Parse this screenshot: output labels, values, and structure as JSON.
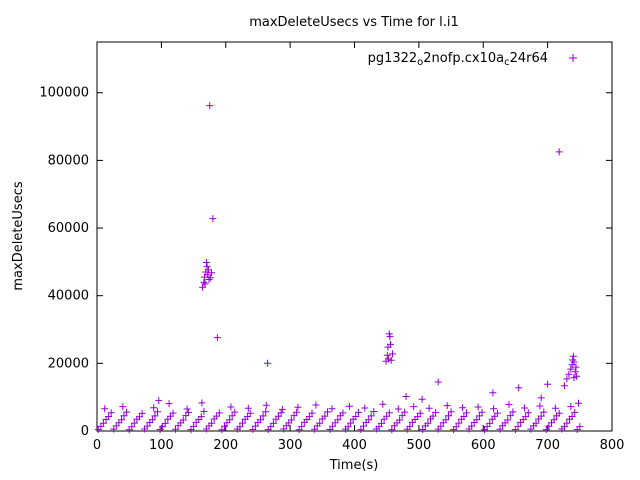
{
  "title": "maxDeleteUsecs vs Time for l.i1",
  "xlabel": "Time(s)",
  "ylabel": "maxDeleteUsecs",
  "legend": {
    "label_plain": "pg1322_o2nofp.cx10a_c24r64",
    "segments": [
      {
        "t": "pg1322",
        "sub": false
      },
      {
        "t": "o",
        "sub": true
      },
      {
        "t": "2nofp.cx10a",
        "sub": false
      },
      {
        "t": "c",
        "sub": true
      },
      {
        "t": "24r64",
        "sub": false
      }
    ],
    "marker": "plus"
  },
  "colors": {
    "points": "#9400d3",
    "axis": "#000000",
    "text": "#000000"
  },
  "chart_data": {
    "type": "scatter",
    "title": "maxDeleteUsecs vs Time for l.i1",
    "xlabel": "Time(s)",
    "ylabel": "maxDeleteUsecs",
    "xlim": [
      0,
      800
    ],
    "ylim": [
      0,
      115000
    ],
    "xticks": [
      0,
      100,
      200,
      300,
      400,
      500,
      600,
      700,
      800
    ],
    "yticks": [
      0,
      20000,
      40000,
      60000,
      80000,
      100000
    ],
    "grid": false,
    "legend_position": "top-right-inside",
    "series": [
      {
        "name": "pg1322_o2nofp.cx10a_c24r64",
        "marker": "plus",
        "color": "#9400d3",
        "points": [
          [
            2,
            400
          ],
          [
            6,
            1350
          ],
          [
            10,
            2300
          ],
          [
            14,
            3400
          ],
          [
            18,
            4300
          ],
          [
            22,
            5400
          ],
          [
            26,
            550
          ],
          [
            30,
            1500
          ],
          [
            34,
            2450
          ],
          [
            38,
            3300
          ],
          [
            42,
            4500
          ],
          [
            46,
            5600
          ],
          [
            50,
            350
          ],
          [
            54,
            1250
          ],
          [
            58,
            2350
          ],
          [
            62,
            3500
          ],
          [
            66,
            4200
          ],
          [
            70,
            5200
          ],
          [
            74,
            600
          ],
          [
            78,
            1450
          ],
          [
            82,
            2500
          ],
          [
            86,
            3350
          ],
          [
            90,
            4450
          ],
          [
            94,
            5700
          ],
          [
            98,
            450
          ],
          [
            102,
            1300
          ],
          [
            106,
            2250
          ],
          [
            110,
            3450
          ],
          [
            114,
            4350
          ],
          [
            118,
            5300
          ],
          [
            122,
            500
          ],
          [
            126,
            1550
          ],
          [
            130,
            2400
          ],
          [
            134,
            3250
          ],
          [
            138,
            4550
          ],
          [
            142,
            5500
          ],
          [
            146,
            400
          ],
          [
            150,
            1350
          ],
          [
            154,
            2550
          ],
          [
            158,
            3400
          ],
          [
            162,
            4250
          ],
          [
            166,
            5800
          ],
          [
            170,
            600
          ],
          [
            174,
            1500
          ],
          [
            178,
            2300
          ],
          [
            182,
            3550
          ],
          [
            186,
            4400
          ],
          [
            190,
            5350
          ],
          [
            194,
            350
          ],
          [
            198,
            1400
          ],
          [
            202,
            2450
          ],
          [
            206,
            3300
          ],
          [
            210,
            4500
          ],
          [
            214,
            5600
          ],
          [
            218,
            550
          ],
          [
            222,
            1250
          ],
          [
            226,
            2350
          ],
          [
            230,
            3500
          ],
          [
            234,
            4300
          ],
          [
            238,
            5250
          ],
          [
            242,
            450
          ],
          [
            246,
            1450
          ],
          [
            250,
            2500
          ],
          [
            254,
            3350
          ],
          [
            258,
            4450
          ],
          [
            262,
            5700
          ],
          [
            266,
            400
          ],
          [
            270,
            1300
          ],
          [
            274,
            2250
          ],
          [
            278,
            3450
          ],
          [
            282,
            4350
          ],
          [
            286,
            5400
          ],
          [
            290,
            600
          ],
          [
            294,
            1550
          ],
          [
            298,
            2400
          ],
          [
            302,
            3250
          ],
          [
            306,
            4550
          ],
          [
            310,
            5550
          ],
          [
            314,
            350
          ],
          [
            318,
            1350
          ],
          [
            322,
            2550
          ],
          [
            326,
            3400
          ],
          [
            330,
            4250
          ],
          [
            334,
            5300
          ],
          [
            338,
            500
          ],
          [
            342,
            1500
          ],
          [
            346,
            2300
          ],
          [
            350,
            3550
          ],
          [
            354,
            4400
          ],
          [
            358,
            5650
          ],
          [
            362,
            450
          ],
          [
            366,
            1400
          ],
          [
            370,
            2450
          ],
          [
            374,
            3300
          ],
          [
            378,
            4500
          ],
          [
            382,
            5350
          ],
          [
            386,
            550
          ],
          [
            390,
            1250
          ],
          [
            394,
            2350
          ],
          [
            398,
            3500
          ],
          [
            402,
            4300
          ],
          [
            406,
            5500
          ],
          [
            410,
            400
          ],
          [
            414,
            1450
          ],
          [
            418,
            2500
          ],
          [
            422,
            3350
          ],
          [
            426,
            4450
          ],
          [
            430,
            5750
          ],
          [
            434,
            600
          ],
          [
            438,
            1300
          ],
          [
            442,
            2250
          ],
          [
            446,
            3450
          ],
          [
            450,
            4350
          ],
          [
            454,
            5400
          ],
          [
            458,
            350
          ],
          [
            462,
            1550
          ],
          [
            466,
            2400
          ],
          [
            470,
            3250
          ],
          [
            474,
            4550
          ],
          [
            478,
            5600
          ],
          [
            482,
            500
          ],
          [
            486,
            1350
          ],
          [
            490,
            2550
          ],
          [
            494,
            3400
          ],
          [
            498,
            4250
          ],
          [
            502,
            5250
          ],
          [
            506,
            450
          ],
          [
            510,
            1500
          ],
          [
            514,
            2300
          ],
          [
            518,
            3550
          ],
          [
            522,
            4400
          ],
          [
            526,
            5500
          ],
          [
            530,
            550
          ],
          [
            534,
            1400
          ],
          [
            538,
            2450
          ],
          [
            542,
            3300
          ],
          [
            546,
            4500
          ],
          [
            550,
            5700
          ],
          [
            554,
            400
          ],
          [
            558,
            1250
          ],
          [
            562,
            2350
          ],
          [
            566,
            3500
          ],
          [
            570,
            4300
          ],
          [
            574,
            5350
          ],
          [
            578,
            600
          ],
          [
            582,
            1450
          ],
          [
            586,
            2500
          ],
          [
            590,
            3350
          ],
          [
            594,
            4450
          ],
          [
            598,
            5550
          ],
          [
            602,
            350
          ],
          [
            606,
            1300
          ],
          [
            610,
            2250
          ],
          [
            614,
            3450
          ],
          [
            618,
            4350
          ],
          [
            622,
            5300
          ],
          [
            626,
            500
          ],
          [
            630,
            1550
          ],
          [
            634,
            2400
          ],
          [
            638,
            3250
          ],
          [
            642,
            4550
          ],
          [
            646,
            5650
          ],
          [
            650,
            450
          ],
          [
            654,
            1350
          ],
          [
            658,
            2550
          ],
          [
            662,
            3400
          ],
          [
            666,
            4250
          ],
          [
            670,
            5400
          ],
          [
            674,
            550
          ],
          [
            678,
            1500
          ],
          [
            682,
            2300
          ],
          [
            686,
            3550
          ],
          [
            690,
            4400
          ],
          [
            694,
            5600
          ],
          [
            698,
            400
          ],
          [
            702,
            1400
          ],
          [
            706,
            2450
          ],
          [
            710,
            3300
          ],
          [
            714,
            4500
          ],
          [
            718,
            5250
          ],
          [
            722,
            600
          ],
          [
            726,
            1250
          ],
          [
            730,
            2350
          ],
          [
            734,
            3500
          ],
          [
            738,
            4300
          ],
          [
            742,
            5500
          ],
          [
            746,
            450
          ],
          [
            750,
            1300
          ],
          [
            12,
            6600
          ],
          [
            40,
            7200
          ],
          [
            88,
            6900
          ],
          [
            112,
            8100
          ],
          [
            140,
            6500
          ],
          [
            163,
            8300
          ],
          [
            208,
            7100
          ],
          [
            235,
            6700
          ],
          [
            263,
            7600
          ],
          [
            288,
            6400
          ],
          [
            312,
            7000
          ],
          [
            340,
            7700
          ],
          [
            365,
            6600
          ],
          [
            392,
            7300
          ],
          [
            416,
            6800
          ],
          [
            444,
            7900
          ],
          [
            468,
            6500
          ],
          [
            492,
            7200
          ],
          [
            516,
            6700
          ],
          [
            544,
            7500
          ],
          [
            568,
            6900
          ],
          [
            592,
            7100
          ],
          [
            616,
            6600
          ],
          [
            640,
            7800
          ],
          [
            664,
            6800
          ],
          [
            688,
            7400
          ],
          [
            712,
            6700
          ],
          [
            736,
            7200
          ],
          [
            748,
            8200
          ],
          [
            96,
            9000
          ],
          [
            480,
            10200
          ],
          [
            505,
            9400
          ],
          [
            615,
            11300
          ],
          [
            655,
            12800
          ],
          [
            690,
            9800
          ],
          [
            700,
            13800
          ],
          [
            726,
            13400
          ],
          [
            530,
            14500
          ],
          [
            164,
            42500
          ],
          [
            166,
            44000
          ],
          [
            167,
            45500
          ],
          [
            168,
            43500
          ],
          [
            169,
            47000
          ],
          [
            170,
            49800
          ],
          [
            171,
            48600
          ],
          [
            172,
            46200
          ],
          [
            173,
            47600
          ],
          [
            174,
            44800
          ],
          [
            175,
            96200
          ],
          [
            176,
            45300
          ],
          [
            178,
            46800
          ],
          [
            180,
            62800
          ],
          [
            187,
            27600
          ],
          [
            265,
            20000
          ],
          [
            449,
            20600
          ],
          [
            451,
            22400
          ],
          [
            452,
            24800
          ],
          [
            453,
            21300
          ],
          [
            454,
            28700
          ],
          [
            455,
            27900
          ],
          [
            456,
            25600
          ],
          [
            457,
            20900
          ],
          [
            459,
            22800
          ],
          [
            718,
            82500
          ],
          [
            730,
            15400
          ],
          [
            733,
            16800
          ],
          [
            736,
            18300
          ],
          [
            738,
            19600
          ],
          [
            739,
            21000
          ],
          [
            740,
            22100
          ],
          [
            741,
            20400
          ],
          [
            743,
            17500
          ],
          [
            744,
            18900
          ],
          [
            745,
            16200
          ],
          [
            741,
            15800
          ]
        ]
      }
    ]
  }
}
